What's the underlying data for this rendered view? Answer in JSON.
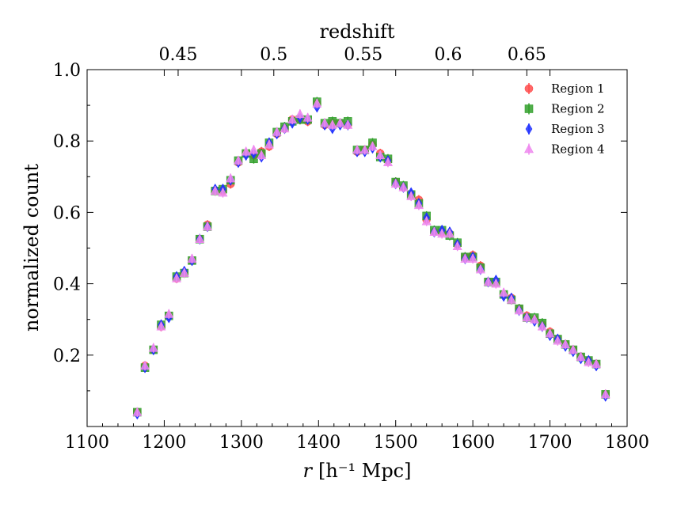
{
  "chart_data": {
    "type": "scatter",
    "title": "",
    "xlabel_var": "r",
    "xlabel_units": "[h⁻¹ Mpc]",
    "ylabel": "normalized count",
    "top_axis_label": "redshift",
    "xlim": [
      1100,
      1800
    ],
    "ylim": [
      0.0,
      1.0
    ],
    "x_ticks": [
      1100,
      1200,
      1300,
      1400,
      1500,
      1600,
      1700,
      1800
    ],
    "x_tick_labels": [
      "1100",
      "1200",
      "1300",
      "1400",
      "1500",
      "1600",
      "1700",
      "1800"
    ],
    "y_ticks": [
      0.2,
      0.4,
      0.6,
      0.8,
      1.0
    ],
    "y_tick_labels": [
      "0.2",
      "0.4",
      "0.6",
      "0.8",
      "1.0"
    ],
    "top_ticks": [
      {
        "label": "0.45",
        "r": 1218
      },
      {
        "label": "0.5",
        "r": 1342
      },
      {
        "label": "0.55",
        "r": 1458
      },
      {
        "label": "0.6",
        "r": 1568
      },
      {
        "label": "0.65",
        "r": 1670
      }
    ],
    "legend_position": "top-right",
    "x": [
      1165,
      1175,
      1186,
      1196,
      1206,
      1216,
      1226,
      1236,
      1246,
      1256,
      1266,
      1276,
      1286,
      1296,
      1306,
      1316,
      1326,
      1336,
      1346,
      1356,
      1366,
      1376,
      1386,
      1398,
      1408,
      1418,
      1428,
      1438,
      1450,
      1460,
      1470,
      1480,
      1490,
      1500,
      1510,
      1520,
      1530,
      1540,
      1550,
      1560,
      1570,
      1580,
      1590,
      1600,
      1610,
      1620,
      1630,
      1640,
      1650,
      1660,
      1670,
      1680,
      1690,
      1700,
      1710,
      1720,
      1730,
      1740,
      1750,
      1760,
      1772
    ],
    "series": [
      {
        "name": "Region 1",
        "color": "#ff4d4d",
        "marker": "circle",
        "values": [
          0.04,
          0.17,
          0.215,
          0.28,
          0.31,
          0.415,
          0.43,
          0.465,
          0.525,
          0.565,
          0.66,
          0.66,
          0.68,
          0.74,
          0.765,
          0.76,
          0.77,
          0.785,
          0.82,
          0.835,
          0.86,
          0.86,
          0.855,
          0.905,
          0.845,
          0.85,
          0.85,
          0.845,
          0.77,
          0.775,
          0.79,
          0.765,
          0.745,
          0.685,
          0.67,
          0.65,
          0.635,
          0.58,
          0.545,
          0.545,
          0.54,
          0.51,
          0.475,
          0.48,
          0.45,
          0.405,
          0.405,
          0.37,
          0.36,
          0.33,
          0.31,
          0.3,
          0.285,
          0.265,
          0.245,
          0.23,
          0.215,
          0.195,
          0.185,
          0.175,
          0.09
        ]
      },
      {
        "name": "Region 2",
        "color": "#33a02c",
        "marker": "square",
        "values": [
          0.04,
          0.165,
          0.215,
          0.285,
          0.31,
          0.42,
          0.43,
          0.465,
          0.525,
          0.56,
          0.66,
          0.665,
          0.69,
          0.745,
          0.765,
          0.75,
          0.765,
          0.795,
          0.825,
          0.84,
          0.855,
          0.86,
          0.86,
          0.91,
          0.85,
          0.855,
          0.85,
          0.855,
          0.775,
          0.775,
          0.795,
          0.755,
          0.75,
          0.685,
          0.675,
          0.65,
          0.625,
          0.59,
          0.55,
          0.55,
          0.535,
          0.515,
          0.475,
          0.475,
          0.445,
          0.405,
          0.405,
          0.37,
          0.355,
          0.33,
          0.305,
          0.305,
          0.29,
          0.26,
          0.245,
          0.23,
          0.215,
          0.195,
          0.185,
          0.175,
          0.09
        ]
      },
      {
        "name": "Region 3",
        "color": "#2233ff",
        "marker": "diamond",
        "values": [
          0.035,
          0.165,
          0.215,
          0.285,
          0.305,
          0.42,
          0.435,
          0.465,
          0.525,
          0.56,
          0.665,
          0.665,
          0.69,
          0.74,
          0.76,
          0.765,
          0.755,
          0.795,
          0.82,
          0.835,
          0.85,
          0.865,
          0.86,
          0.895,
          0.845,
          0.835,
          0.845,
          0.845,
          0.77,
          0.77,
          0.78,
          0.755,
          0.745,
          0.68,
          0.67,
          0.655,
          0.625,
          0.585,
          0.545,
          0.55,
          0.545,
          0.51,
          0.47,
          0.475,
          0.44,
          0.405,
          0.41,
          0.365,
          0.36,
          0.325,
          0.305,
          0.295,
          0.28,
          0.255,
          0.245,
          0.225,
          0.21,
          0.19,
          0.185,
          0.17,
          0.085
        ]
      },
      {
        "name": "Region 4",
        "color": "#ee88ee",
        "marker": "triangle",
        "values": [
          0.04,
          0.17,
          0.22,
          0.28,
          0.315,
          0.415,
          0.43,
          0.47,
          0.525,
          0.56,
          0.66,
          0.655,
          0.695,
          0.745,
          0.77,
          0.775,
          0.76,
          0.79,
          0.825,
          0.835,
          0.86,
          0.875,
          0.865,
          0.905,
          0.85,
          0.845,
          0.85,
          0.845,
          0.775,
          0.775,
          0.785,
          0.76,
          0.74,
          0.68,
          0.67,
          0.645,
          0.62,
          0.575,
          0.545,
          0.54,
          0.54,
          0.505,
          0.47,
          0.47,
          0.44,
          0.405,
          0.4,
          0.375,
          0.355,
          0.325,
          0.305,
          0.3,
          0.28,
          0.26,
          0.24,
          0.23,
          0.215,
          0.195,
          0.18,
          0.175,
          0.09
        ]
      }
    ]
  }
}
